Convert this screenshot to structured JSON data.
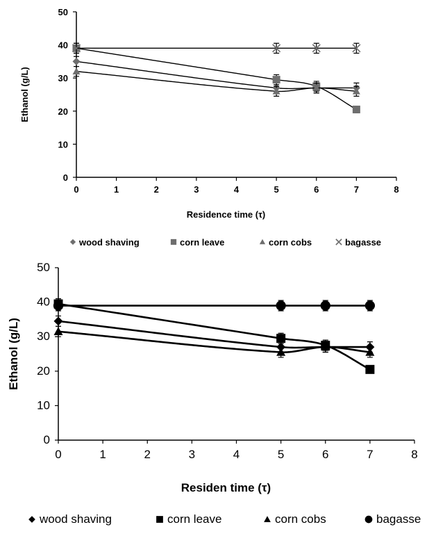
{
  "chart_data": [
    {
      "type": "scatter",
      "title": "",
      "xlabel": "Residence time (τ)",
      "ylabel": "Ethanol (g/L)",
      "xlim": [
        0,
        8
      ],
      "ylim": [
        0,
        50
      ],
      "x_ticks": [
        "0",
        "1",
        "2",
        "3",
        "4",
        "5",
        "6",
        "7",
        "8"
      ],
      "y_ticks": [
        "0",
        "10",
        "20",
        "30",
        "40",
        "50"
      ],
      "grid": false,
      "legend_position": "bottom",
      "legend": [
        "wood shaving",
        "corn leave",
        "corn cobs",
        "bagasse"
      ],
      "x": [
        0,
        5,
        6,
        7
      ],
      "series": [
        {
          "name": "wood shaving",
          "values": [
            35,
            27,
            27,
            27
          ],
          "error": [
            1.5,
            1.5,
            1.5,
            1.5
          ],
          "marker": "diamond"
        },
        {
          "name": "corn leave",
          "values": [
            39,
            29.5,
            27.5,
            20.5
          ],
          "error": [
            1.5,
            1.5,
            1.5,
            1.0
          ],
          "marker": "square"
        },
        {
          "name": "corn cobs",
          "values": [
            32,
            26,
            27,
            26
          ],
          "error": [
            1.5,
            1.5,
            1.5,
            1.5
          ],
          "marker": "triangle"
        },
        {
          "name": "bagasse",
          "values": [
            39,
            39,
            39,
            39
          ],
          "error": [
            1.5,
            1.5,
            1.5,
            1.5
          ],
          "marker": "x"
        }
      ],
      "colors": {
        "marker": "#6e6e6e",
        "line": "#000000"
      }
    },
    {
      "type": "scatter",
      "title": "",
      "xlabel": "Residen time (τ)",
      "ylabel": "Ethanol (g/L)",
      "xlim": [
        0,
        8
      ],
      "ylim": [
        0,
        50
      ],
      "x_ticks": [
        "0",
        "1",
        "2",
        "3",
        "4",
        "5",
        "6",
        "7",
        "8"
      ],
      "y_ticks": [
        "0",
        "10",
        "20",
        "30",
        "40",
        "50"
      ],
      "grid": false,
      "legend_position": "bottom",
      "legend": [
        "wood shaving",
        "corn leave",
        "corn cobs",
        "bagasse"
      ],
      "x": [
        0,
        5,
        6,
        7
      ],
      "series": [
        {
          "name": "wood shaving",
          "values": [
            34.5,
            27,
            27,
            27
          ],
          "error": [
            1.5,
            1.5,
            1.5,
            1.5
          ],
          "marker": "diamond"
        },
        {
          "name": "corn leave",
          "values": [
            39.5,
            29.5,
            27.5,
            20.5
          ],
          "error": [
            1.5,
            1.5,
            1.5,
            1.0
          ],
          "marker": "square"
        },
        {
          "name": "corn cobs",
          "values": [
            31.5,
            25.5,
            27,
            25.5
          ],
          "error": [
            1.5,
            1.5,
            1.5,
            1.5
          ],
          "marker": "triangle"
        },
        {
          "name": "bagasse",
          "values": [
            39,
            39,
            39,
            39
          ],
          "error": [
            1.5,
            1.5,
            1.5,
            1.5
          ],
          "marker": "circle"
        }
      ],
      "colors": {
        "marker": "#000000",
        "line": "#000000"
      }
    }
  ]
}
